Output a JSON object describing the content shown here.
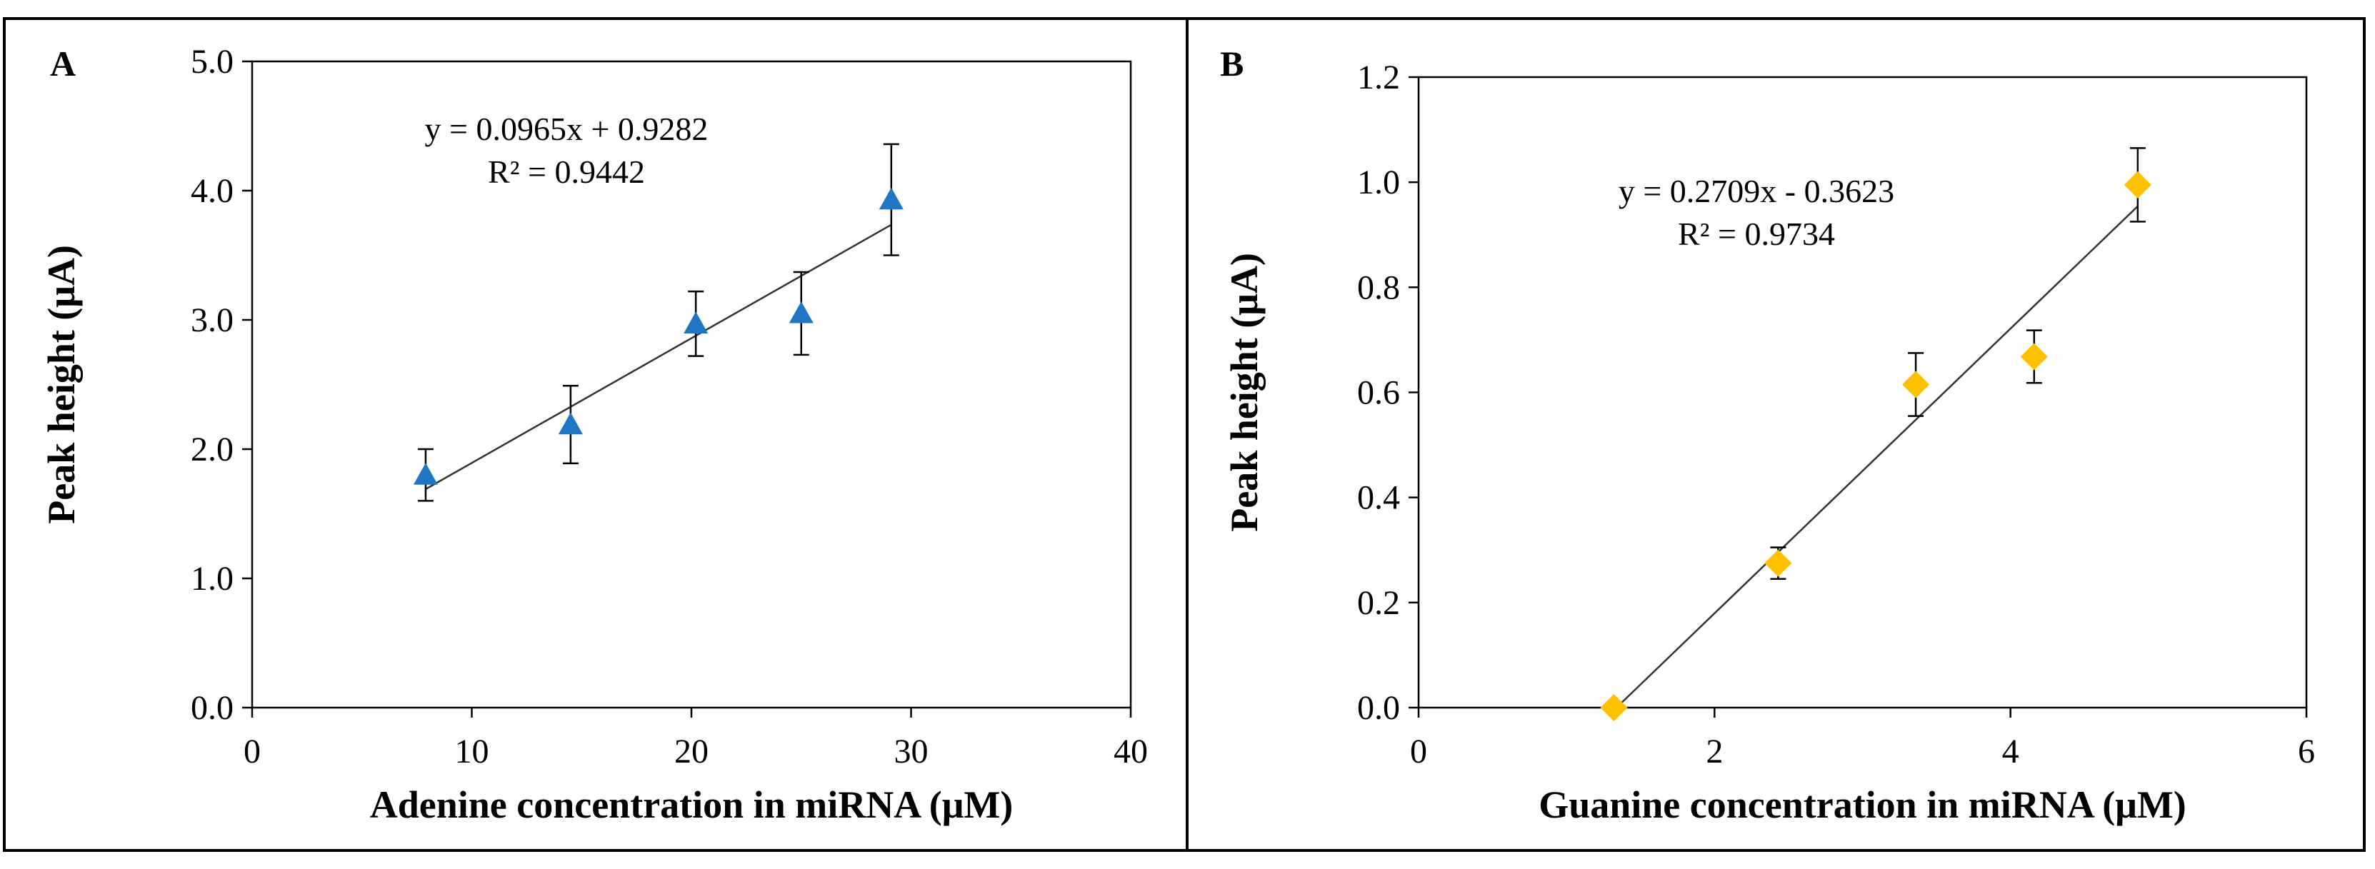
{
  "chart_data": [
    {
      "type": "scatter",
      "panel_label": "A",
      "xlabel": "Adenine concentration  in miRNA (μM)",
      "ylabel": "Peak height (μA)",
      "xlim": [
        0,
        40
      ],
      "ylim": [
        0,
        5
      ],
      "x_ticks": [
        0,
        10,
        20,
        30,
        40
      ],
      "x_tick_labels": [
        "0",
        "10",
        "20",
        "30",
        "40"
      ],
      "y_ticks": [
        0,
        1,
        2,
        3,
        4,
        5
      ],
      "y_tick_labels": [
        "0.0",
        "1.0",
        "2.0",
        "3.0",
        "4.0",
        "5.0"
      ],
      "marker": "triangle",
      "marker_color": "#1f77c4",
      "series": [
        {
          "x": [
            7.9,
            14.5,
            20.2,
            25.0,
            29.1
          ],
          "y": [
            1.8,
            2.19,
            2.97,
            3.05,
            3.93
          ],
          "error": [
            0.2,
            0.3,
            0.25,
            0.32,
            0.43
          ]
        }
      ],
      "trendline": {
        "slope": 0.0965,
        "intercept": 0.9282,
        "x_range": [
          7.9,
          29.1
        ]
      },
      "annotation": {
        "equation": "y = 0.0965x + 0.9282",
        "r2": "R² = 0.9442"
      },
      "grid": false
    },
    {
      "type": "scatter",
      "panel_label": "B",
      "xlabel": "Guanine concentration  in miRNA (μM)",
      "ylabel": "Peak height (μA)",
      "xlim": [
        0,
        6
      ],
      "ylim": [
        0,
        1.2
      ],
      "x_ticks": [
        0,
        2,
        4,
        6
      ],
      "x_tick_labels": [
        "0",
        "2",
        "4",
        "6"
      ],
      "y_ticks": [
        0,
        0.2,
        0.4,
        0.6,
        0.8,
        1.0,
        1.2
      ],
      "y_tick_labels": [
        "0.0",
        "0.2",
        "0.4",
        "0.6",
        "0.8",
        "1.0",
        "1.2"
      ],
      "marker": "diamond",
      "marker_color": "#ffc000",
      "series": [
        {
          "x": [
            1.32,
            2.43,
            3.36,
            4.16,
            4.86
          ],
          "y": [
            0.0,
            0.275,
            0.615,
            0.668,
            0.995
          ],
          "error": [
            0.0,
            0.03,
            0.06,
            0.05,
            0.07
          ]
        }
      ],
      "trendline": {
        "slope": 0.2709,
        "intercept": -0.3623,
        "x_range": [
          1.34,
          4.86
        ]
      },
      "annotation": {
        "equation": "y = 0.2709x - 0.3623",
        "r2": "R² = 0.9734"
      },
      "grid": false
    }
  ]
}
